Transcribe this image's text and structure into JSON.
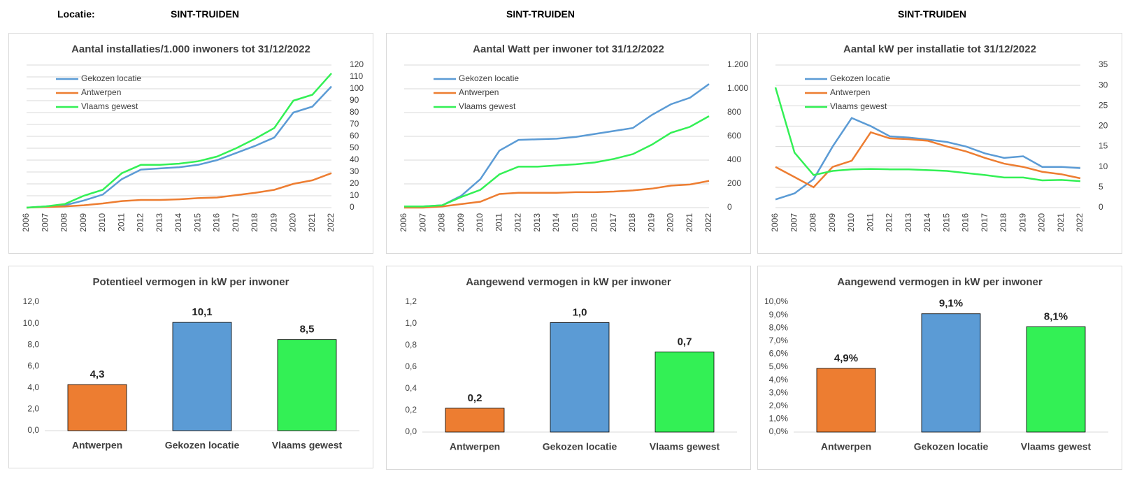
{
  "header": {
    "label": "Locatie:",
    "locations": [
      "SINT-TRUIDEN",
      "SINT-TRUIDEN",
      "SINT-TRUIDEN"
    ]
  },
  "chart_data": [
    {
      "type": "line",
      "title": "Aantal installaties/1.000  inwoners tot 31/12/2022",
      "legend": "upper left",
      "grid": true,
      "categories": [
        "2006",
        "2007",
        "2008",
        "2009",
        "2010",
        "2011",
        "2012",
        "2013",
        "2014",
        "2015",
        "2016",
        "2017",
        "2018",
        "2019",
        "2020",
        "2021",
        "2022"
      ],
      "ylim": [
        0,
        120
      ],
      "yticks": [
        0,
        10,
        20,
        30,
        40,
        50,
        60,
        70,
        80,
        90,
        100,
        110,
        120
      ],
      "series": [
        {
          "name": "Gekozen locatie",
          "color": "#5b9bd5",
          "values": [
            0,
            1,
            2,
            6,
            11,
            24,
            32,
            33,
            34,
            36,
            40,
            46,
            52,
            59,
            80,
            85,
            102
          ]
        },
        {
          "name": "Antwerpen",
          "color": "#ed7d31",
          "values": [
            0,
            0.5,
            1,
            2,
            3.5,
            5.5,
            6.5,
            6.5,
            7,
            8,
            8.5,
            10.5,
            12.5,
            15,
            20,
            23,
            29
          ]
        },
        {
          "name": "Vlaams gewest",
          "color": "#33f055",
          "values": [
            0,
            1,
            3,
            10,
            15,
            29,
            36,
            36,
            37,
            39,
            43,
            50,
            58,
            67,
            90,
            95,
            113
          ]
        }
      ]
    },
    {
      "type": "line",
      "title": "Aantal Watt per inwoner  tot 31/12/2022",
      "legend": "upper left",
      "grid": true,
      "categories": [
        "2006",
        "2007",
        "2008",
        "2009",
        "2010",
        "2011",
        "2012",
        "2013",
        "2014",
        "2015",
        "2016",
        "2017",
        "2018",
        "2019",
        "2020",
        "2021",
        "2022"
      ],
      "ylim": [
        0,
        1200
      ],
      "yticks": [
        0,
        200,
        400,
        600,
        800,
        {
          "value": 1000,
          "label": "1.000"
        },
        {
          "value": 1200,
          "label": "1.200"
        }
      ],
      "series": [
        {
          "name": "Gekozen locatie",
          "color": "#5b9bd5",
          "values": [
            10,
            10,
            20,
            100,
            240,
            480,
            570,
            575,
            580,
            595,
            620,
            645,
            670,
            780,
            870,
            925,
            1040
          ]
        },
        {
          "name": "Antwerpen",
          "color": "#ed7d31",
          "values": [
            0,
            0,
            10,
            30,
            50,
            115,
            125,
            125,
            125,
            130,
            130,
            135,
            145,
            160,
            185,
            195,
            225
          ]
        },
        {
          "name": "Vlaams gewest",
          "color": "#33f055",
          "values": [
            10,
            10,
            20,
            90,
            150,
            280,
            345,
            345,
            355,
            365,
            380,
            410,
            450,
            530,
            630,
            680,
            770
          ]
        }
      ]
    },
    {
      "type": "line",
      "title": "Aantal kW per installatie  tot 31/12/2022",
      "legend": "upper left",
      "grid": true,
      "categories": [
        "2006",
        "2007",
        "2008",
        "2009",
        "2010",
        "2011",
        "2012",
        "2013",
        "2014",
        "2015",
        "2016",
        "2017",
        "2018",
        "2019",
        "2020",
        "2021",
        "2022"
      ],
      "ylim": [
        0,
        35
      ],
      "yticks": [
        0,
        5,
        10,
        15,
        20,
        25,
        30,
        35
      ],
      "series": [
        {
          "name": "Gekozen locatie",
          "color": "#5b9bd5",
          "values": [
            2,
            3.5,
            7,
            15,
            22,
            20,
            17.5,
            17.2,
            16.7,
            16.1,
            15,
            13.3,
            12.2,
            12.6,
            10,
            10,
            9.7
          ]
        },
        {
          "name": "Antwerpen",
          "color": "#ed7d31",
          "values": [
            10,
            7.5,
            5,
            10,
            11.5,
            18.5,
            17,
            16.8,
            16.4,
            15,
            13.8,
            12.2,
            10.8,
            10,
            8.8,
            8.2,
            7.2
          ]
        },
        {
          "name": "Vlaams gewest",
          "color": "#33f055",
          "values": [
            29.5,
            13.5,
            8,
            9,
            9.4,
            9.5,
            9.4,
            9.4,
            9.2,
            9,
            8.5,
            8,
            7.4,
            7.4,
            6.7,
            6.8,
            6.5
          ]
        }
      ]
    },
    {
      "type": "bar",
      "title": "Potentieel vermogen in kW per inwoner",
      "grid": false,
      "categories": [
        "Antwerpen",
        "Gekozen locatie",
        "Vlaams gewest"
      ],
      "colors": [
        "#ed7d31",
        "#5b9bd5",
        "#33f055"
      ],
      "values": [
        4.3,
        10.1,
        8.5
      ],
      "value_labels": [
        "4,3",
        "10,1",
        "8,5"
      ],
      "ylim": [
        0,
        12
      ],
      "yticks": [
        {
          "value": 0,
          "label": "0,0"
        },
        {
          "value": 2,
          "label": "2,0"
        },
        {
          "value": 4,
          "label": "4,0"
        },
        {
          "value": 6,
          "label": "6,0"
        },
        {
          "value": 8,
          "label": "8,0"
        },
        {
          "value": 10,
          "label": "10,0"
        },
        {
          "value": 12,
          "label": "12,0"
        }
      ]
    },
    {
      "type": "bar",
      "title": "Aangewend vermogen in kW per inwoner",
      "grid": false,
      "categories": [
        "Antwerpen",
        "Gekozen locatie",
        "Vlaams gewest"
      ],
      "colors": [
        "#ed7d31",
        "#5b9bd5",
        "#33f055"
      ],
      "values": [
        0.22,
        1.01,
        0.74
      ],
      "value_labels": [
        "0,2",
        "1,0",
        "0,7"
      ],
      "ylim": [
        0,
        1.2
      ],
      "yticks": [
        {
          "value": 0,
          "label": "0,0"
        },
        {
          "value": 0.2,
          "label": "0,2"
        },
        {
          "value": 0.4,
          "label": "0,4"
        },
        {
          "value": 0.6,
          "label": "0,6"
        },
        {
          "value": 0.8,
          "label": "0,8"
        },
        {
          "value": 1,
          "label": "1,0"
        },
        {
          "value": 1.2,
          "label": "1,2"
        }
      ]
    },
    {
      "type": "bar",
      "title": "Aangewend vermogen in kW per inwoner",
      "grid": false,
      "categories": [
        "Antwerpen",
        "Gekozen locatie",
        "Vlaams gewest"
      ],
      "colors": [
        "#ed7d31",
        "#5b9bd5",
        "#33f055"
      ],
      "values": [
        4.9,
        9.1,
        8.1
      ],
      "value_labels": [
        "4,9%",
        "9,1%",
        "8,1%"
      ],
      "ylim": [
        0,
        10
      ],
      "yticks": [
        {
          "value": 0,
          "label": "0,0%"
        },
        {
          "value": 1,
          "label": "1,0%"
        },
        {
          "value": 2,
          "label": "2,0%"
        },
        {
          "value": 3,
          "label": "3,0%"
        },
        {
          "value": 4,
          "label": "4,0%"
        },
        {
          "value": 5,
          "label": "5,0%"
        },
        {
          "value": 6,
          "label": "6,0%"
        },
        {
          "value": 7,
          "label": "7,0%"
        },
        {
          "value": 8,
          "label": "8,0%"
        },
        {
          "value": 9,
          "label": "9,0%"
        },
        {
          "value": 10,
          "label": "10,0%"
        }
      ]
    }
  ]
}
